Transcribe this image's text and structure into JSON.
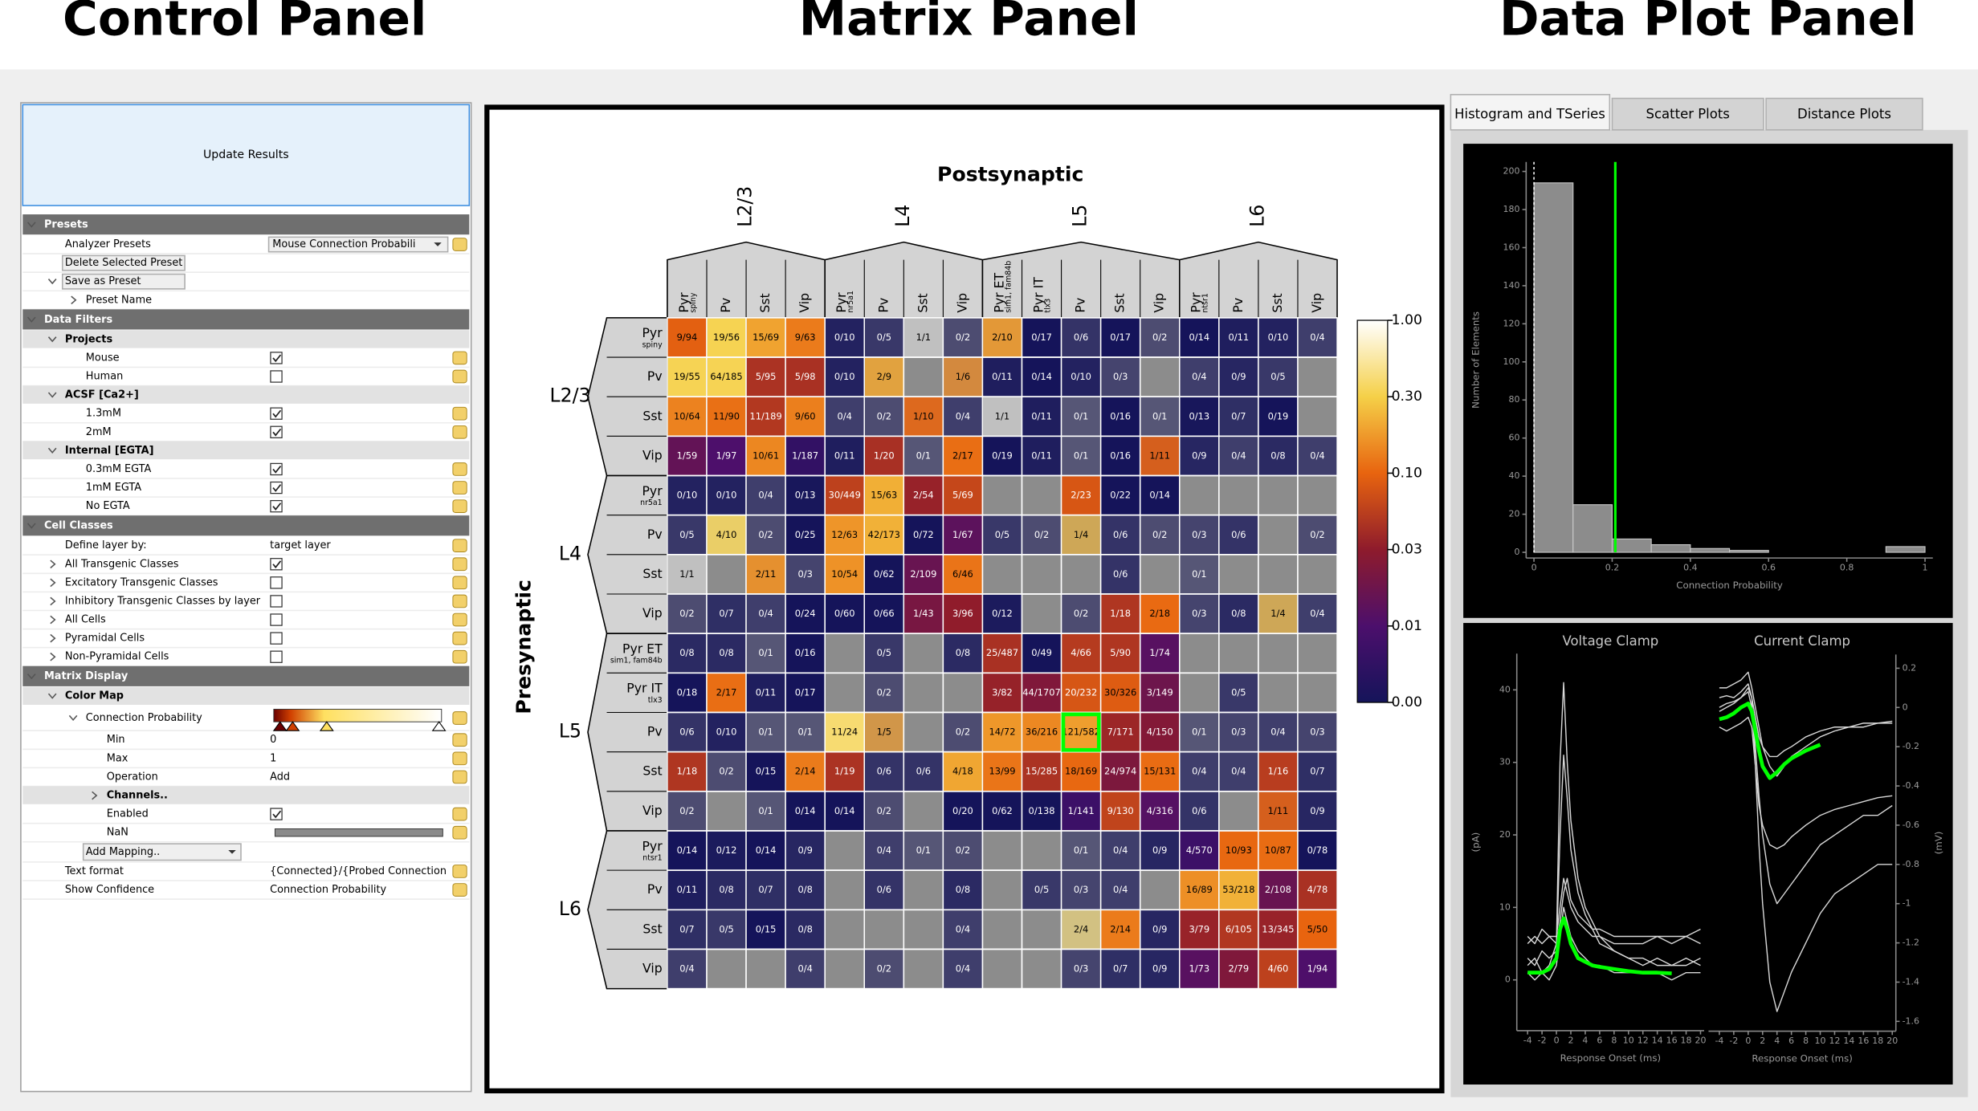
{
  "panels": {
    "control": "Control Panel",
    "matrix": "Matrix Panel",
    "plot": "Data Plot Panel"
  },
  "control_panel": {
    "update_button": "Update Results",
    "tree": [
      {
        "label": "Presets",
        "children": [
          {
            "label": "Analyzer Presets",
            "value": "Mouse Connection Probabili",
            "widget": "dropdown"
          },
          {
            "label": "Delete Selected Preset",
            "widget": "button"
          },
          {
            "label": "Save as Preset",
            "widget": "button",
            "children": [
              {
                "label": "Preset Name",
                "collapsed": true
              }
            ]
          }
        ]
      },
      {
        "label": "Data Filters",
        "children": [
          {
            "label": "Projects",
            "children": [
              {
                "label": "Mouse",
                "checked": true
              },
              {
                "label": "Human",
                "checked": false
              }
            ]
          },
          {
            "label": "ACSF [Ca2+]",
            "children": [
              {
                "label": "1.3mM",
                "checked": true
              },
              {
                "label": "2mM",
                "checked": true
              }
            ]
          },
          {
            "label": "Internal [EGTA]",
            "children": [
              {
                "label": "0.3mM EGTA",
                "checked": true
              },
              {
                "label": "1mM EGTA",
                "checked": true
              },
              {
                "label": "No EGTA",
                "checked": true
              }
            ]
          }
        ]
      },
      {
        "label": "Cell Classes",
        "children": [
          {
            "label": "Define layer by:",
            "value": "target layer"
          },
          {
            "label": "All Transgenic Classes",
            "checked": true,
            "collapsed": true
          },
          {
            "label": "Excitatory Transgenic Classes",
            "checked": false,
            "collapsed": true
          },
          {
            "label": "Inhibitory Transgenic Classes by layer",
            "checked": false,
            "collapsed": true
          },
          {
            "label": "All Cells",
            "checked": false,
            "collapsed": true
          },
          {
            "label": "Pyramidal Cells",
            "checked": false,
            "collapsed": true
          },
          {
            "label": "Non-Pyramidal Cells",
            "checked": false,
            "collapsed": true
          }
        ]
      },
      {
        "label": "Matrix Display",
        "children": [
          {
            "label": "Color Map",
            "children": [
              {
                "label": "Connection Probability",
                "widget": "gradient",
                "children": [
                  {
                    "label": "Min",
                    "value": 0
                  },
                  {
                    "label": "Max",
                    "value": 1
                  },
                  {
                    "label": "Operation",
                    "value": "Add"
                  },
                  {
                    "label": "Channels..",
                    "collapsed": true,
                    "group": true
                  },
                  {
                    "label": "Enabled",
                    "checked": true
                  },
                  {
                    "label": "NaN",
                    "widget": "color"
                  }
                ]
              },
              {
                "label": "Add Mapping..",
                "widget": "dropdown"
              }
            ]
          },
          {
            "label": "Text format",
            "value": "{Connected}/{Probed Connection"
          },
          {
            "label": "Show Confidence",
            "value": "Connection Probability"
          }
        ]
      }
    ]
  },
  "matrix": {
    "x_label": "Postsynaptic",
    "y_label": "Presynaptic",
    "groups": [
      {
        "name": "L2/3",
        "classes": [
          {
            "name": "Pyr",
            "sub": "spiny"
          },
          {
            "name": "Pv"
          },
          {
            "name": "Sst"
          },
          {
            "name": "Vip"
          }
        ]
      },
      {
        "name": "L4",
        "classes": [
          {
            "name": "Pyr",
            "sub": "nr5a1"
          },
          {
            "name": "Pv"
          },
          {
            "name": "Sst"
          },
          {
            "name": "Vip"
          }
        ]
      },
      {
        "name": "L5",
        "classes": [
          {
            "name": "Pyr ET",
            "sub": "sim1, fam84b"
          },
          {
            "name": "Pyr IT",
            "sub": "tlx3"
          },
          {
            "name": "Pv"
          },
          {
            "name": "Sst"
          },
          {
            "name": "Vip"
          }
        ]
      },
      {
        "name": "L6",
        "classes": [
          {
            "name": "Pyr",
            "sub": "ntsr1"
          },
          {
            "name": "Pv"
          },
          {
            "name": "Sst"
          },
          {
            "name": "Vip"
          }
        ]
      }
    ],
    "cells": [
      [
        "9/94",
        "19/56",
        "15/69",
        "9/63",
        "0/10",
        "0/5",
        "1/1",
        "0/2",
        "2/10",
        "0/17",
        "0/6",
        "0/17",
        "0/2",
        "0/14",
        "0/11",
        "0/10",
        "0/4"
      ],
      [
        "19/55",
        "64/185",
        "5/95",
        "5/98",
        "0/10",
        "2/9",
        null,
        "1/6",
        "0/11",
        "0/14",
        "0/10",
        "0/3",
        null,
        "0/4",
        "0/9",
        "0/5",
        null
      ],
      [
        "10/64",
        "11/90",
        "11/189",
        "9/60",
        "0/4",
        "0/2",
        "1/10",
        "0/4",
        "1/1",
        "0/11",
        "0/1",
        "0/16",
        "0/1",
        "0/13",
        "0/7",
        "0/19",
        null
      ],
      [
        "1/59",
        "1/97",
        "10/61",
        "1/187",
        "0/11",
        "1/20",
        "0/1",
        "2/17",
        "0/19",
        "0/11",
        "0/1",
        "0/16",
        "1/11",
        "0/9",
        "0/4",
        "0/8",
        "0/4"
      ],
      [
        "0/10",
        "0/10",
        "0/4",
        "0/13",
        "30/449",
        "15/63",
        "2/54",
        "5/69",
        null,
        null,
        "2/23",
        "0/22",
        "0/14",
        null,
        null,
        null,
        null
      ],
      [
        "0/5",
        "4/10",
        "0/2",
        "0/25",
        "12/63",
        "42/173",
        "0/72",
        "1/67",
        "0/5",
        "0/2",
        "1/4",
        "0/6",
        "0/2",
        "0/3",
        "0/6",
        null,
        "0/2"
      ],
      [
        "1/1",
        null,
        "2/11",
        "0/3",
        "10/54",
        "0/62",
        "2/109",
        "6/46",
        null,
        null,
        null,
        "0/6",
        null,
        "0/1",
        null,
        null,
        null
      ],
      [
        "0/2",
        "0/7",
        "0/4",
        "0/24",
        "0/60",
        "0/66",
        "1/43",
        "3/96",
        "0/12",
        null,
        "0/2",
        "1/18",
        "2/18",
        "0/3",
        "0/8",
        "1/4",
        "0/4"
      ],
      [
        "0/8",
        "0/8",
        "0/1",
        "0/16",
        null,
        "0/5",
        null,
        "0/8",
        "25/487",
        "0/49",
        "4/66",
        "5/90",
        "1/74",
        null,
        null,
        null,
        null
      ],
      [
        "0/18",
        "2/17",
        "0/11",
        "0/17",
        null,
        "0/2",
        null,
        null,
        "3/82",
        "44/1707",
        "20/232",
        "30/326",
        "3/149",
        null,
        "0/5",
        null,
        null
      ],
      [
        "0/6",
        "0/10",
        "0/1",
        "0/1",
        "11/24",
        "1/5",
        null,
        "0/2",
        "14/72",
        "36/216",
        "121/582",
        "7/171",
        "4/150",
        "0/1",
        "0/3",
        "0/4",
        "0/3"
      ],
      [
        "1/18",
        "0/2",
        "0/15",
        "2/14",
        "1/19",
        "0/6",
        "0/6",
        "4/18",
        "13/99",
        "15/285",
        "18/169",
        "24/974",
        "15/131",
        "0/4",
        "0/4",
        "1/16",
        "0/7"
      ],
      [
        "0/2",
        null,
        "0/1",
        "0/14",
        "0/14",
        "0/2",
        null,
        "0/20",
        "0/62",
        "0/138",
        "1/141",
        "9/130",
        "4/316",
        "0/6",
        null,
        "1/11",
        "0/9"
      ],
      [
        "0/14",
        "0/12",
        "0/14",
        "0/9",
        null,
        "0/4",
        "0/1",
        "0/2",
        null,
        null,
        "0/1",
        "0/4",
        "0/9",
        "4/570",
        "10/93",
        "10/87",
        "0/78"
      ],
      [
        "0/11",
        "0/8",
        "0/7",
        "0/8",
        null,
        "0/6",
        null,
        "0/8",
        null,
        "0/5",
        "0/3",
        "0/4",
        null,
        "16/89",
        "53/218",
        "2/108",
        "4/78"
      ],
      [
        "0/7",
        "0/5",
        "0/15",
        "0/8",
        null,
        null,
        null,
        "0/4",
        null,
        null,
        "2/4",
        "2/14",
        "0/9",
        "3/79",
        "6/105",
        "13/345",
        "5/50"
      ],
      [
        "0/4",
        null,
        null,
        "0/4",
        null,
        "0/2",
        null,
        "0/4",
        null,
        null,
        "0/3",
        "0/7",
        "0/9",
        "1/73",
        "2/79",
        "4/60",
        "1/94"
      ]
    ],
    "selected": {
      "row": 10,
      "col": 10
    },
    "colorbar": {
      "ticks": [
        {
          "value": 0,
          "label": "0.00"
        },
        {
          "value": 0.01,
          "label": "0.01"
        },
        {
          "value": 0.03,
          "label": "0.03"
        },
        {
          "value": 0.1,
          "label": "0.10"
        },
        {
          "value": 0.3,
          "label": "0.30"
        },
        {
          "value": 1,
          "label": "1.00"
        }
      ],
      "colors": [
        "#15145a",
        "#4c0f6c",
        "#8e1b2c",
        "#e8640f",
        "#f5d048",
        "#ffffff"
      ]
    }
  },
  "plot_panel": {
    "tabs": [
      "Histogram and TSeries",
      "Scatter Plots",
      "Distance Plots"
    ],
    "active_tab": 0
  },
  "chart_data": [
    {
      "type": "histogram",
      "x_label": "Connection Probability",
      "y_label": "Number of Elements",
      "bins": [
        0,
        0.1,
        0.2,
        0.3,
        0.4,
        0.5,
        0.6,
        0.7,
        0.8,
        0.9,
        1
      ],
      "counts": [
        194,
        25,
        7,
        4,
        2,
        1,
        0,
        0,
        0,
        3
      ],
      "color": "#8c8c8c",
      "marker": 0.208,
      "marker_color": "#00ff00",
      "xlim": [
        -0.02,
        1.02
      ],
      "ylim": [
        -3,
        205
      ],
      "xticks": [
        0,
        0.2,
        0.4,
        0.6,
        0.8,
        1
      ],
      "yticks": [
        0,
        20,
        40,
        60,
        80,
        100,
        120,
        140,
        160,
        180,
        200
      ]
    },
    {
      "type": "line",
      "title": "Voltage Clamp",
      "x_label": "Response Onset (ms)",
      "y_label": "(pA)",
      "y_side": "left",
      "x": [
        -4,
        -3,
        -2,
        -1,
        0,
        0.5,
        1,
        1.5,
        2,
        3,
        4,
        5,
        6,
        8,
        10,
        12,
        14,
        16,
        18,
        20
      ],
      "series": [
        {
          "color": "#d8d8d8",
          "values": [
            2,
            3,
            1,
            2,
            5,
            30,
            41,
            30,
            22,
            14,
            10,
            8,
            6,
            4,
            3,
            3,
            2,
            2,
            3,
            2
          ]
        },
        {
          "color": "#d8d8d8",
          "values": [
            3,
            2,
            4,
            3,
            4,
            20,
            31,
            25,
            18,
            12,
            9,
            7,
            5,
            4,
            3,
            2,
            3,
            2,
            2,
            3
          ]
        },
        {
          "color": "#d8d8d8",
          "values": [
            6,
            5,
            7,
            6,
            6,
            10,
            14,
            12,
            10,
            8,
            7,
            6,
            6,
            5,
            5,
            5,
            6,
            5,
            6,
            5
          ]
        },
        {
          "color": "#d8d8d8",
          "values": [
            1,
            0,
            1,
            0,
            2,
            6,
            10,
            8,
            6,
            4,
            3,
            2,
            2,
            1,
            1,
            1,
            1,
            0,
            1,
            1
          ]
        },
        {
          "color": "#d8d8d8",
          "values": [
            5,
            6,
            5,
            6,
            5,
            8,
            12,
            14,
            11,
            9,
            8,
            7,
            7,
            6,
            6,
            6,
            6,
            6,
            6,
            7
          ]
        },
        {
          "color": "#00ff00",
          "values": [
            1,
            1,
            1,
            1.5,
            3,
            7,
            8.5,
            7,
            5,
            3,
            2.5,
            2,
            1.8,
            1.5,
            1.2,
            1,
            1,
            0.9,
            null,
            null
          ]
        }
      ],
      "xlim": [
        -5.5,
        20.5
      ],
      "ylim": [
        -7,
        45
      ],
      "xticks": [
        -4,
        -2,
        0,
        2,
        4,
        6,
        8,
        10,
        12,
        14,
        16,
        18,
        20
      ],
      "yticks": [
        0,
        10,
        20,
        30,
        40
      ]
    },
    {
      "type": "line",
      "title": "Current Clamp",
      "x_label": "Response Onset (ms)",
      "y_label": "(mV)",
      "y_side": "right",
      "x": [
        -4,
        -3,
        -2,
        -1,
        0,
        0.5,
        1,
        1.5,
        2,
        3,
        4,
        5,
        6,
        8,
        10,
        12,
        14,
        16,
        18,
        20
      ],
      "series": [
        {
          "color": "#d8d8d8",
          "values": [
            -0.02,
            0,
            0.02,
            0.05,
            0.1,
            0.05,
            -0.3,
            -0.7,
            -1.0,
            -1.4,
            -1.55,
            -1.45,
            -1.35,
            -1.2,
            -1.05,
            -0.95,
            -0.9,
            -0.85,
            -0.8,
            -0.8
          ]
        },
        {
          "color": "#d8d8d8",
          "values": [
            0,
            0.02,
            0.03,
            0.05,
            0.08,
            0,
            -0.2,
            -0.45,
            -0.65,
            -0.9,
            -1.0,
            -0.95,
            -0.9,
            -0.8,
            -0.7,
            -0.65,
            -0.6,
            -0.55,
            -0.55,
            -0.5
          ]
        },
        {
          "color": "#d8d8d8",
          "values": [
            0.05,
            0.06,
            0.05,
            0.08,
            0.12,
            0.05,
            -0.05,
            -0.15,
            -0.2,
            -0.25,
            -0.25,
            -0.22,
            -0.2,
            -0.15,
            -0.12,
            -0.1,
            -0.1,
            -0.08,
            -0.08,
            -0.07
          ]
        },
        {
          "color": "#d8d8d8",
          "values": [
            -0.1,
            -0.12,
            -0.1,
            -0.08,
            -0.05,
            -0.1,
            -0.3,
            -0.5,
            -0.6,
            -0.7,
            -0.72,
            -0.7,
            -0.66,
            -0.6,
            -0.55,
            -0.52,
            -0.5,
            -0.48,
            -0.46,
            -0.45
          ]
        },
        {
          "color": "#d8d8d8",
          "values": [
            0.1,
            0.1,
            0.12,
            0.14,
            0.18,
            0.1,
            0,
            -0.1,
            -0.2,
            -0.3,
            -0.35,
            -0.3,
            -0.25,
            -0.2,
            -0.15,
            -0.12,
            -0.1,
            -0.1,
            -0.08,
            -0.08
          ]
        },
        {
          "color": "#00ff00",
          "values": [
            -0.06,
            -0.05,
            -0.03,
            0,
            0.02,
            -0.02,
            -0.12,
            -0.22,
            -0.3,
            -0.36,
            -0.33,
            -0.29,
            -0.26,
            -0.22,
            -0.19,
            null,
            null,
            null,
            null,
            null
          ]
        }
      ],
      "xlim": [
        -5.5,
        20.5
      ],
      "ylim": [
        -1.65,
        0.27
      ],
      "xticks": [
        -4,
        -2,
        0,
        2,
        4,
        6,
        8,
        10,
        12,
        14,
        16,
        18,
        20
      ],
      "yticks": [
        0.2,
        0,
        -0.2,
        -0.4,
        -0.6,
        -0.8,
        -1,
        -1.2,
        -1.4,
        -1.6
      ]
    }
  ]
}
